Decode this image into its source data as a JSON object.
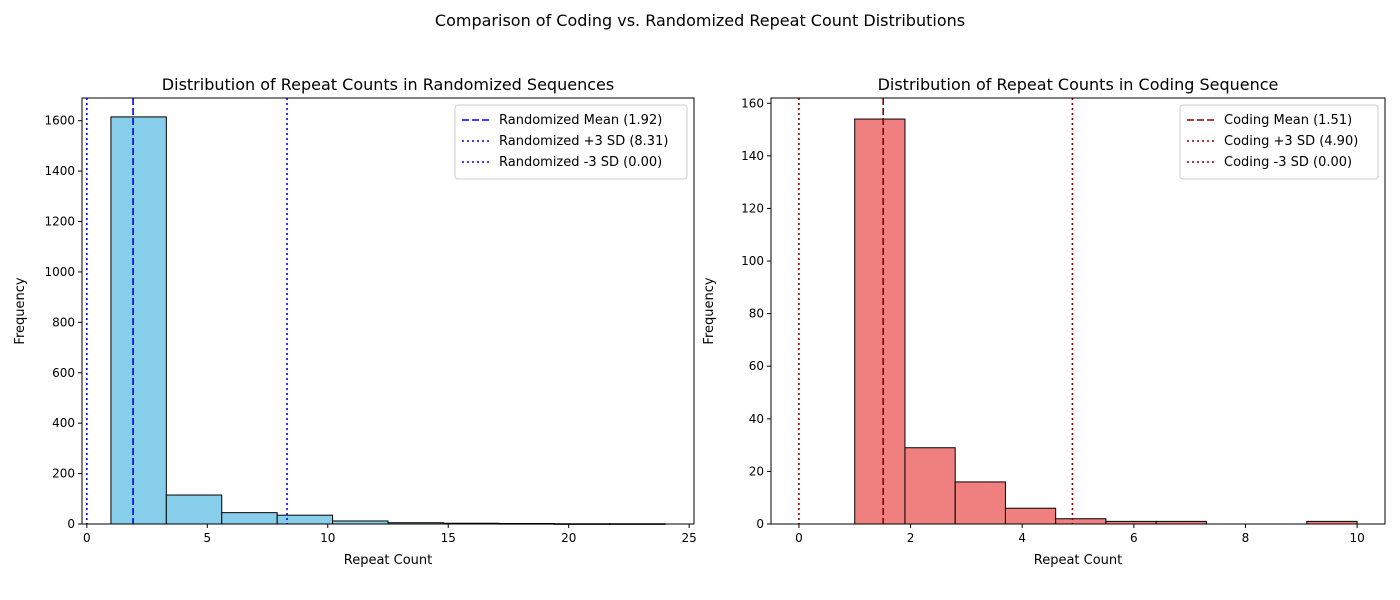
{
  "figure": {
    "suptitle": "Comparison of Coding vs. Randomized Repeat Count Distributions"
  },
  "chart_data": [
    {
      "type": "bar",
      "subtype": "histogram",
      "title": "Distribution of Repeat Counts in Randomized Sequences",
      "xlabel": "Repeat Count",
      "ylabel": "Frequency",
      "xlim": [
        -0.2,
        25.2
      ],
      "ylim": [
        0,
        1690
      ],
      "xticks": [
        0,
        5,
        10,
        15,
        20,
        25
      ],
      "yticks": [
        0,
        200,
        400,
        600,
        800,
        1000,
        1200,
        1400,
        1600
      ],
      "bin_edges": [
        1.0,
        3.3,
        5.6,
        7.9,
        10.2,
        12.5,
        14.8,
        17.1,
        19.4,
        21.7,
        24.0
      ],
      "counts": [
        1615,
        115,
        45,
        35,
        12,
        5,
        3,
        2,
        1,
        1
      ],
      "bar_color": "#87ceeb",
      "edge_color": "#000000",
      "legend_position": "upper right",
      "grid": false,
      "vlines": [
        {
          "label": "Randomized Mean (1.92)",
          "x": 1.92,
          "style": "dashed",
          "color": "#0000ff"
        },
        {
          "label": "Randomized +3 SD (8.31)",
          "x": 8.31,
          "style": "dotted",
          "color": "#0000ff"
        },
        {
          "label": "Randomized -3 SD (0.00)",
          "x": 0.0,
          "style": "dotted",
          "color": "#0000ff"
        }
      ]
    },
    {
      "type": "bar",
      "subtype": "histogram",
      "title": "Distribution of Repeat Counts in Coding Sequence",
      "xlabel": "Repeat Count",
      "ylabel": "Frequency",
      "xlim": [
        -0.5,
        10.5
      ],
      "ylim": [
        0,
        162
      ],
      "xticks": [
        0,
        2,
        4,
        6,
        8,
        10
      ],
      "yticks": [
        0,
        20,
        40,
        60,
        80,
        100,
        120,
        140,
        160
      ],
      "bin_edges": [
        1.0,
        1.9,
        2.8,
        3.7,
        4.6,
        5.5,
        6.4,
        7.3,
        8.2,
        9.1,
        10.0
      ],
      "counts": [
        154,
        29,
        16,
        6,
        2,
        1,
        1,
        0,
        0,
        1
      ],
      "bar_color": "#f08080",
      "edge_color": "#000000",
      "legend_position": "upper right",
      "grid": false,
      "vlines": [
        {
          "label": "Coding Mean (1.51)",
          "x": 1.51,
          "style": "dashed",
          "color": "#8b0000"
        },
        {
          "label": "Coding +3 SD (4.90)",
          "x": 4.9,
          "style": "dotted",
          "color": "#8b0000"
        },
        {
          "label": "Coding -3 SD (0.00)",
          "x": 0.0,
          "style": "dotted",
          "color": "#8b0000"
        }
      ]
    }
  ]
}
